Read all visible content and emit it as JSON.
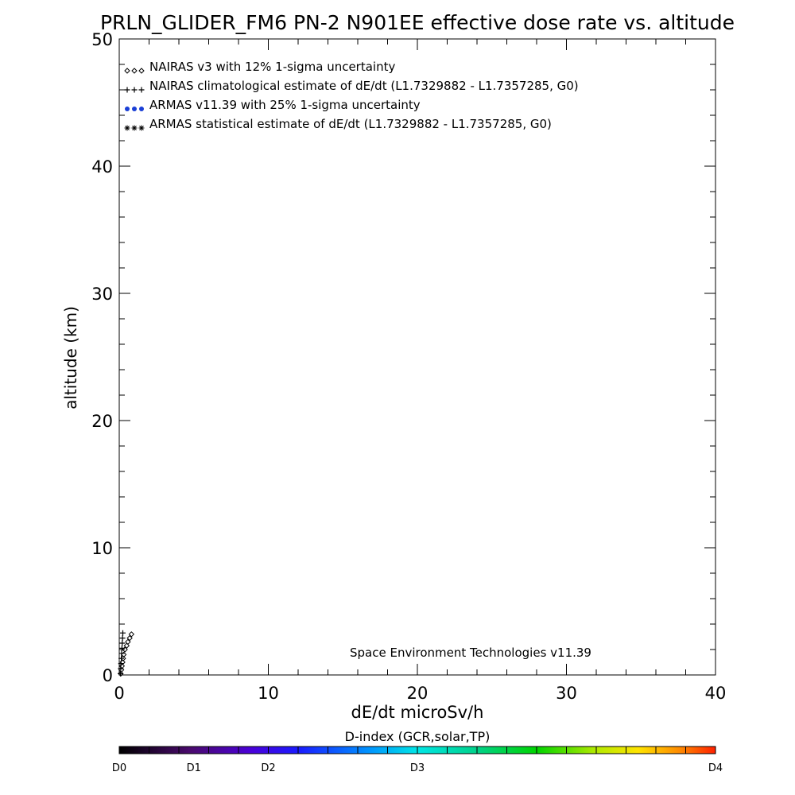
{
  "chart_data": {
    "type": "scatter",
    "title": "PRLN_GLIDER_FM6 PN-2 N901EE effective dose rate vs. altitude",
    "xlabel": "dE/dt microSv/h",
    "ylabel": "altitude (km)",
    "xlim": [
      0,
      40
    ],
    "ylim": [
      0,
      50
    ],
    "x_ticks": [
      "0",
      "10",
      "20",
      "30",
      "40"
    ],
    "y_ticks": [
      "0",
      "10",
      "20",
      "30",
      "40",
      "50"
    ],
    "grid": false,
    "legend_position": "top-left",
    "series": [
      {
        "name": "NAIRAS v3 with 12% 1-sigma uncertainty",
        "marker": "diamond",
        "color": "#000000",
        "points": [
          [
            0.1,
            0.1
          ],
          [
            0.14,
            0.4
          ],
          [
            0.18,
            0.7
          ],
          [
            0.22,
            1.0
          ],
          [
            0.26,
            1.3
          ],
          [
            0.3,
            1.6
          ],
          [
            0.38,
            2.0
          ],
          [
            0.5,
            2.3
          ],
          [
            0.58,
            2.6
          ],
          [
            0.7,
            2.9
          ],
          [
            0.82,
            3.2
          ]
        ]
      },
      {
        "name": "NAIRAS climatological estimate of dE/dt (L1.7329882 - L1.7357285, G0)",
        "marker": "plus",
        "color": "#000000",
        "points": [
          [
            0.08,
            0.1
          ],
          [
            0.1,
            0.5
          ],
          [
            0.12,
            0.9
          ],
          [
            0.14,
            1.3
          ],
          [
            0.16,
            1.7
          ],
          [
            0.18,
            2.1
          ],
          [
            0.2,
            2.5
          ],
          [
            0.22,
            2.9
          ],
          [
            0.24,
            3.3
          ]
        ]
      },
      {
        "name": "ARMAS v11.39 with 25% 1-sigma uncertainty",
        "marker": "dot",
        "color": "#1a3fd6",
        "points": []
      },
      {
        "name": "ARMAS statistical estimate of dE/dt (L1.7329882 - L1.7357285, G0)",
        "marker": "asterisk",
        "color": "#000000",
        "points": []
      }
    ],
    "annotation": "Space Environment Technologies v11.39",
    "colorbar": {
      "title": "D-index (GCR,solar,TP)",
      "labels": [
        "D0",
        "D1",
        "D2",
        "D3",
        "D4"
      ],
      "label_values": [
        0,
        0.25,
        0.5,
        1.0,
        2.0
      ],
      "range": [
        0,
        2.0
      ]
    }
  }
}
